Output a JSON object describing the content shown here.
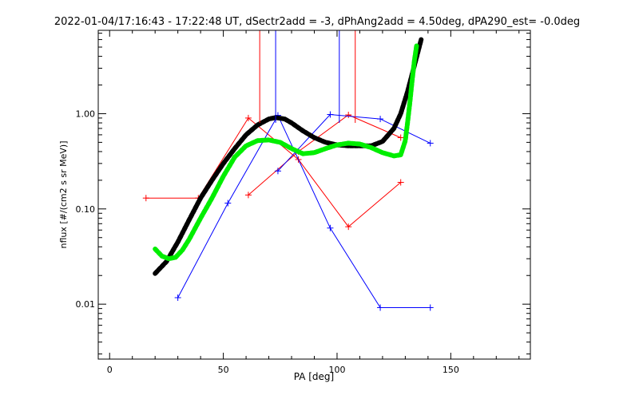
{
  "chart_data": {
    "type": "line",
    "title": "2022-01-04/17:16:43 - 17:22:48 UT, dSectr2add = -3, dPhAng2add = 4.50deg, dPA290_est=  -0.0deg",
    "xlabel": "PA [deg]",
    "ylabel": "nflux [#/(cm2 s sr MeV)]",
    "xlim": [
      -5,
      185
    ],
    "ylim": [
      0.00265,
      7.5
    ],
    "yscale": "log",
    "grid": false,
    "x_ticks": [
      0,
      50,
      100,
      150
    ],
    "x_tick_labels": [
      "0",
      "50",
      "100",
      "150"
    ],
    "y_ticks": [
      0.01,
      0.1,
      1.0
    ],
    "y_tick_labels": [
      "0.01",
      "0.10",
      "1.00"
    ],
    "series": [
      {
        "color": "#ff0000",
        "style": "line+plus",
        "x": [
          16,
          39,
          61,
          83,
          105,
          128
        ],
        "y": [
          0.13,
          0.13,
          0.9,
          0.33,
          0.065,
          0.19
        ]
      },
      {
        "color": "#ff0000",
        "style": "line+plus",
        "x": [
          61,
          83,
          105,
          128
        ],
        "y": [
          0.14,
          0.4,
          0.97,
          0.56
        ]
      },
      {
        "color": "#0000ff",
        "style": "line+plus",
        "x": [
          30,
          52,
          74,
          97,
          119,
          141
        ],
        "y": [
          0.0117,
          0.115,
          0.96,
          0.063,
          0.0092,
          0.0092
        ]
      },
      {
        "color": "#0000ff",
        "style": "line+plus",
        "x": [
          74,
          97,
          119,
          141
        ],
        "y": [
          0.25,
          0.98,
          0.88,
          0.49
        ]
      },
      {
        "color": "#000000",
        "style": "thick-dash",
        "x": [
          20,
          25,
          30,
          35,
          40,
          45,
          50,
          55,
          60,
          65,
          70,
          73,
          77,
          80,
          85,
          90,
          95,
          100,
          105,
          110,
          115,
          120,
          125,
          128,
          131,
          134,
          137
        ],
        "y": [
          0.021,
          0.028,
          0.045,
          0.077,
          0.13,
          0.2,
          0.3,
          0.43,
          0.6,
          0.76,
          0.88,
          0.91,
          0.88,
          0.8,
          0.66,
          0.56,
          0.5,
          0.47,
          0.46,
          0.46,
          0.46,
          0.51,
          0.7,
          1.0,
          1.7,
          3.2,
          6.0
        ]
      },
      {
        "color": "#00ee00",
        "style": "thick-dash",
        "x": [
          20,
          23,
          26,
          29,
          32,
          35,
          40,
          45,
          50,
          55,
          60,
          65,
          70,
          75,
          80,
          85,
          90,
          95,
          100,
          105,
          110,
          115,
          120,
          125,
          128,
          130,
          131,
          132,
          133,
          134,
          135
        ],
        "y": [
          0.038,
          0.032,
          0.03,
          0.031,
          0.037,
          0.048,
          0.08,
          0.13,
          0.22,
          0.35,
          0.46,
          0.52,
          0.53,
          0.5,
          0.43,
          0.38,
          0.39,
          0.43,
          0.47,
          0.49,
          0.48,
          0.44,
          0.39,
          0.36,
          0.37,
          0.52,
          0.8,
          1.3,
          2.2,
          3.6,
          5.2
        ]
      }
    ],
    "markers": [
      {
        "color": "#ff0000",
        "x": [
          66,
          108
        ]
      },
      {
        "color": "#0000ff",
        "x": [
          73,
          101
        ]
      }
    ]
  }
}
